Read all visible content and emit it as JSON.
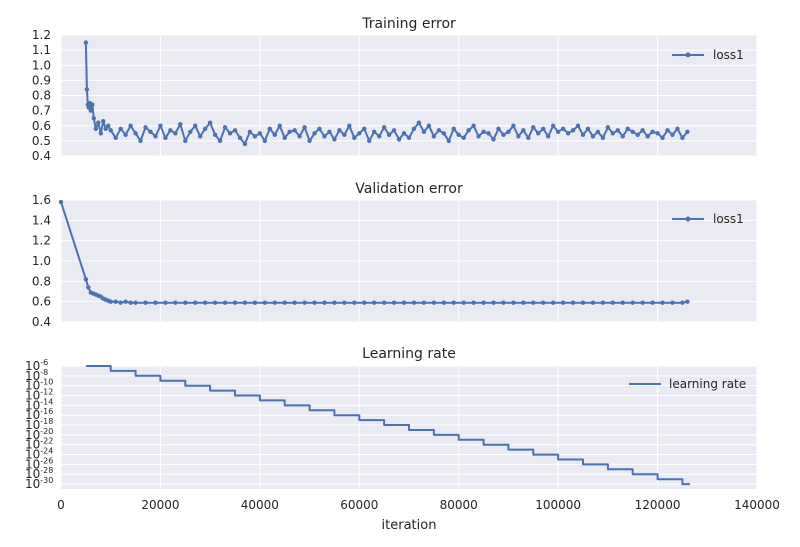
{
  "chart_data": [
    {
      "type": "line",
      "title": "Training error",
      "xlabel": "",
      "ylabel": "",
      "xlim": [
        0,
        140000
      ],
      "ylim": [
        0.4,
        1.2
      ],
      "yticks": [
        "0.4",
        "0.5",
        "0.6",
        "0.7",
        "0.8",
        "0.9",
        "1.0",
        "1.1",
        "1.2"
      ],
      "markers": true,
      "legend_position": "top-right",
      "series": [
        {
          "name": "loss1",
          "color": "#4c72b0",
          "x": [
            5000,
            5200,
            5400,
            5600,
            5800,
            6000,
            6300,
            6600,
            7000,
            7500,
            8000,
            8500,
            9000,
            9500,
            10000,
            11000,
            12000,
            13000,
            14000,
            15000,
            16000,
            17000,
            18000,
            19000,
            20000,
            21000,
            22000,
            23000,
            24000,
            25000,
            26000,
            27000,
            28000,
            29000,
            30000,
            31000,
            32000,
            33000,
            34000,
            35000,
            36000,
            37000,
            38000,
            39000,
            40000,
            41000,
            42000,
            43000,
            44000,
            45000,
            46000,
            47000,
            48000,
            49000,
            50000,
            51000,
            52000,
            53000,
            54000,
            55000,
            56000,
            57000,
            58000,
            59000,
            60000,
            61000,
            62000,
            63000,
            64000,
            65000,
            66000,
            67000,
            68000,
            69000,
            70000,
            71000,
            72000,
            73000,
            74000,
            75000,
            76000,
            77000,
            78000,
            79000,
            80000,
            81000,
            82000,
            83000,
            84000,
            85000,
            86000,
            87000,
            88000,
            89000,
            90000,
            91000,
            92000,
            93000,
            94000,
            95000,
            96000,
            97000,
            98000,
            99000,
            100000,
            101000,
            102000,
            103000,
            104000,
            105000,
            106000,
            107000,
            108000,
            109000,
            110000,
            111000,
            112000,
            113000,
            114000,
            115000,
            116000,
            117000,
            118000,
            119000,
            120000,
            121000,
            122000,
            123000,
            124000,
            125000,
            126000
          ],
          "y": [
            1.15,
            0.84,
            0.74,
            0.72,
            0.75,
            0.7,
            0.74,
            0.65,
            0.58,
            0.62,
            0.55,
            0.63,
            0.58,
            0.6,
            0.57,
            0.52,
            0.58,
            0.54,
            0.6,
            0.55,
            0.5,
            0.59,
            0.56,
            0.53,
            0.6,
            0.52,
            0.57,
            0.55,
            0.61,
            0.5,
            0.56,
            0.6,
            0.53,
            0.58,
            0.62,
            0.54,
            0.5,
            0.59,
            0.55,
            0.57,
            0.52,
            0.48,
            0.56,
            0.53,
            0.55,
            0.5,
            0.58,
            0.54,
            0.6,
            0.52,
            0.56,
            0.57,
            0.53,
            0.59,
            0.5,
            0.55,
            0.58,
            0.53,
            0.56,
            0.51,
            0.57,
            0.54,
            0.6,
            0.52,
            0.55,
            0.58,
            0.5,
            0.56,
            0.53,
            0.59,
            0.54,
            0.57,
            0.51,
            0.55,
            0.52,
            0.58,
            0.62,
            0.56,
            0.6,
            0.53,
            0.57,
            0.55,
            0.5,
            0.58,
            0.54,
            0.52,
            0.57,
            0.6,
            0.53,
            0.56,
            0.55,
            0.51,
            0.58,
            0.54,
            0.56,
            0.6,
            0.53,
            0.57,
            0.52,
            0.59,
            0.55,
            0.58,
            0.53,
            0.6,
            0.56,
            0.58,
            0.55,
            0.57,
            0.6,
            0.54,
            0.58,
            0.53,
            0.56,
            0.52,
            0.59,
            0.55,
            0.57,
            0.53,
            0.58,
            0.56,
            0.54,
            0.57,
            0.53,
            0.56,
            0.55,
            0.52,
            0.57,
            0.54,
            0.58,
            0.52,
            0.56
          ]
        }
      ]
    },
    {
      "type": "line",
      "title": "Validation error",
      "xlabel": "",
      "ylabel": "",
      "xlim": [
        0,
        140000
      ],
      "ylim": [
        0.4,
        1.6
      ],
      "yticks": [
        "0.4",
        "0.6",
        "0.8",
        "1.0",
        "1.2",
        "1.4",
        "1.6"
      ],
      "markers": true,
      "legend_position": "top-right",
      "series": [
        {
          "name": "loss1",
          "color": "#4c72b0",
          "x": [
            0,
            5000,
            5500,
            6000,
            6500,
            7000,
            7500,
            8000,
            8500,
            9000,
            9500,
            10000,
            11000,
            12000,
            13000,
            14000,
            15000,
            17000,
            19000,
            21000,
            23000,
            25000,
            27000,
            29000,
            31000,
            33000,
            35000,
            37000,
            39000,
            41000,
            43000,
            45000,
            47000,
            49000,
            51000,
            53000,
            55000,
            57000,
            59000,
            61000,
            63000,
            65000,
            67000,
            69000,
            71000,
            73000,
            75000,
            77000,
            79000,
            81000,
            83000,
            85000,
            87000,
            89000,
            91000,
            93000,
            95000,
            97000,
            99000,
            101000,
            103000,
            105000,
            107000,
            109000,
            111000,
            113000,
            115000,
            117000,
            119000,
            121000,
            123000,
            125000,
            126000
          ],
          "y": [
            1.58,
            0.82,
            0.74,
            0.69,
            0.68,
            0.67,
            0.66,
            0.65,
            0.63,
            0.62,
            0.61,
            0.6,
            0.6,
            0.59,
            0.6,
            0.59,
            0.59,
            0.59,
            0.59,
            0.59,
            0.59,
            0.59,
            0.59,
            0.59,
            0.59,
            0.59,
            0.59,
            0.59,
            0.59,
            0.59,
            0.59,
            0.59,
            0.59,
            0.59,
            0.59,
            0.59,
            0.59,
            0.59,
            0.59,
            0.59,
            0.59,
            0.59,
            0.59,
            0.59,
            0.59,
            0.59,
            0.59,
            0.59,
            0.59,
            0.59,
            0.59,
            0.59,
            0.59,
            0.59,
            0.59,
            0.59,
            0.59,
            0.59,
            0.59,
            0.59,
            0.59,
            0.59,
            0.59,
            0.59,
            0.59,
            0.59,
            0.59,
            0.59,
            0.59,
            0.59,
            0.59,
            0.59,
            0.6
          ]
        }
      ]
    },
    {
      "type": "line",
      "title": "Learning rate",
      "xlabel": "iteration",
      "ylabel": "",
      "xlim": [
        0,
        140000
      ],
      "xticks": [
        "0",
        "20000",
        "40000",
        "60000",
        "80000",
        "100000",
        "120000",
        "140000"
      ],
      "y_scale": "log",
      "ylim_exponent": [
        -31,
        -6
      ],
      "ytick_exponents": [
        "-6",
        "-8",
        "-10",
        "-12",
        "-14",
        "-16",
        "-18",
        "-20",
        "-22",
        "-24",
        "-26",
        "-28",
        "-30"
      ],
      "ytick_base": "10",
      "step": true,
      "legend_position": "top-right",
      "series": [
        {
          "name": "learning rate",
          "color": "#4c72b0",
          "x_breaks": [
            5000,
            10000,
            15000,
            20000,
            25000,
            30000,
            35000,
            40000,
            45000,
            50000,
            55000,
            60000,
            65000,
            70000,
            75000,
            80000,
            85000,
            90000,
            95000,
            100000,
            105000,
            110000,
            115000,
            120000,
            125000,
            126500
          ],
          "log10_values": [
            -6.0,
            -7.0,
            -8.0,
            -9.0,
            -10.0,
            -11.0,
            -12.0,
            -13.0,
            -14.0,
            -15.0,
            -16.0,
            -17.0,
            -18.0,
            -19.0,
            -20.0,
            -21.0,
            -22.0,
            -23.0,
            -24.0,
            -25.0,
            -26.0,
            -27.0,
            -28.0,
            -29.0,
            -30.0
          ]
        }
      ]
    }
  ]
}
